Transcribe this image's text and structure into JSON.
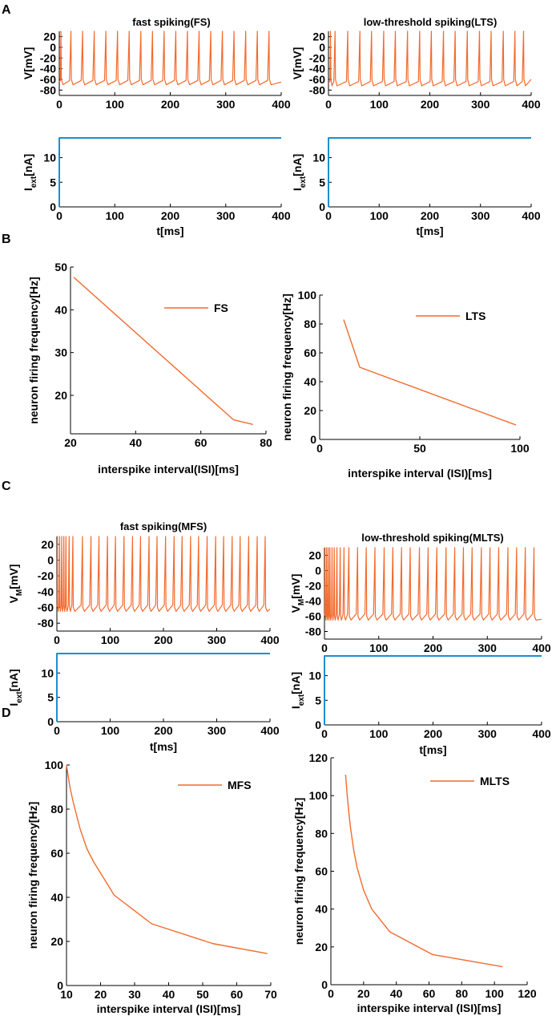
{
  "colors": {
    "voltage": "#f26b2e",
    "current": "#1a8fd0",
    "curve": "#f26b2e",
    "axis": "#000000"
  },
  "panels": [
    {
      "label": "A"
    },
    {
      "label": "B"
    },
    {
      "label": "C"
    },
    {
      "label": "D"
    }
  ],
  "chart_data": [
    {
      "id": "A1",
      "type": "line",
      "panel": "A",
      "title": "fast spiking(FS)",
      "ylabel": "V[mV]",
      "xlabel": "",
      "xlim": [
        0,
        400
      ],
      "ylim": [
        -90,
        30
      ],
      "xticks": [
        "0",
        "100",
        "200",
        "300",
        "400"
      ],
      "yticks": [
        "20",
        "0",
        "-20",
        "-40",
        "-60",
        "-80"
      ],
      "series": [
        {
          "name": "V",
          "kind": "spike_train",
          "spike_times": [
            3,
            21,
            42,
            63,
            84,
            105,
            126,
            147,
            168,
            189,
            210,
            231,
            252,
            273,
            294,
            315,
            336,
            357,
            378
          ],
          "rest": -70,
          "peak": 30,
          "reset": -55,
          "end_value": -65
        }
      ]
    },
    {
      "id": "A2",
      "type": "line",
      "panel": "A",
      "title": "",
      "ylabel": "I",
      "ylabel_sub": "ext",
      "ylabel_suffix": "[nA]",
      "xlabel": "t[ms]",
      "xlim": [
        0,
        400
      ],
      "ylim": [
        0,
        14
      ],
      "xticks": [
        "0",
        "100",
        "200",
        "300",
        "400"
      ],
      "yticks": [
        "0",
        "5",
        "10"
      ],
      "series": [
        {
          "name": "I_ext",
          "kind": "step",
          "x": [
            0,
            0,
            400
          ],
          "y": [
            0,
            14,
            14
          ]
        }
      ]
    },
    {
      "id": "A3",
      "type": "line",
      "panel": "A",
      "title": "low-threshold spiking(LTS)",
      "ylabel": "V[mV]",
      "xlabel": "",
      "xlim": [
        0,
        400
      ],
      "ylim": [
        -90,
        30
      ],
      "xticks": [
        "0",
        "100",
        "200",
        "300",
        "400"
      ],
      "yticks": [
        "20",
        "0",
        "-20",
        "-40",
        "-60",
        "-80"
      ],
      "series": [
        {
          "name": "V",
          "kind": "spike_train",
          "spike_times": [
            4,
            13,
            38,
            62,
            85,
            109,
            132,
            156,
            180,
            203,
            227,
            250,
            274,
            298,
            321,
            345,
            368,
            385
          ],
          "rest": -72,
          "peak": 30,
          "reset": -55,
          "end_value": -60
        }
      ]
    },
    {
      "id": "A4",
      "type": "line",
      "panel": "A",
      "title": "",
      "ylabel": "I",
      "ylabel_sub": "ext",
      "ylabel_suffix": "[nA]",
      "xlabel": "t[ms]",
      "xlim": [
        0,
        400
      ],
      "ylim": [
        0,
        14
      ],
      "xticks": [
        "0",
        "100",
        "200",
        "300",
        "400"
      ],
      "yticks": [
        "0",
        "5",
        "10"
      ],
      "series": [
        {
          "name": "I_ext",
          "kind": "step",
          "x": [
            0,
            0,
            400
          ],
          "y": [
            0,
            14,
            14
          ]
        }
      ]
    },
    {
      "id": "B1",
      "type": "line",
      "panel": "B",
      "title": "",
      "ylabel": "neuron firing frequency[Hz]",
      "xlabel": "interspike interval(ISI)[ms]",
      "xlim": [
        20,
        80
      ],
      "ylim": [
        11,
        50
      ],
      "xticks": [
        "20",
        "40",
        "60",
        "80"
      ],
      "yticks": [
        "20",
        "30",
        "40",
        "50"
      ],
      "legend": "FS",
      "series": [
        {
          "name": "FS",
          "x": [
            21,
            70,
            76
          ],
          "y": [
            47.6,
            14.3,
            13.2
          ]
        }
      ]
    },
    {
      "id": "B2",
      "type": "line",
      "panel": "B",
      "title": "",
      "ylabel": "neuron firing frequency[Hz]",
      "xlabel": "interspike interval (ISI)[ms]",
      "xlim": [
        0,
        100
      ],
      "ylim": [
        0,
        100
      ],
      "xticks": [
        "0",
        "50",
        "100"
      ],
      "yticks": [
        "0",
        "20",
        "40",
        "60",
        "80",
        "100"
      ],
      "legend": "LTS",
      "series": [
        {
          "name": "LTS",
          "x": [
            12,
            20,
            98
          ],
          "y": [
            83,
            50,
            10
          ]
        }
      ]
    },
    {
      "id": "C1",
      "type": "line",
      "panel": "C",
      "title": "fast spiking(MFS)",
      "ylabel": "V",
      "ylabel_sub": "M",
      "ylabel_suffix": "[mV]",
      "xlabel": "",
      "xlim": [
        0,
        400
      ],
      "ylim": [
        -90,
        30
      ],
      "xticks": [
        "0",
        "100",
        "200",
        "300",
        "400"
      ],
      "yticks": [
        "20",
        "0",
        "-20",
        "-40",
        "-60",
        "-80"
      ],
      "series": [
        {
          "name": "V",
          "kind": "spike_train",
          "spike_times": [
            1,
            5,
            9,
            13,
            17,
            23,
            30,
            48,
            64,
            79,
            95,
            110,
            126,
            142,
            157,
            173,
            188,
            204,
            220,
            235,
            251,
            266,
            282,
            298,
            313,
            329,
            344,
            360,
            376,
            391
          ],
          "rest": -65,
          "peak": 30,
          "reset": -55,
          "end_value": -62
        }
      ]
    },
    {
      "id": "C2",
      "type": "line",
      "panel": "C",
      "title": "",
      "ylabel": "I",
      "ylabel_sub": "ext",
      "ylabel_suffix": "[nA]",
      "xlabel": "t[ms]",
      "xlim": [
        0,
        400
      ],
      "ylim": [
        0,
        14
      ],
      "xticks": [
        "0",
        "100",
        "200",
        "300",
        "400"
      ],
      "yticks": [
        "0",
        "5",
        "10"
      ],
      "series": [
        {
          "name": "I_ext",
          "kind": "step",
          "x": [
            0,
            0,
            400
          ],
          "y": [
            0,
            14,
            14
          ]
        }
      ]
    },
    {
      "id": "C3",
      "type": "line",
      "panel": "C",
      "title": "low-threshold spiking(MLTS)",
      "ylabel": "V",
      "ylabel_sub": "M",
      "ylabel_suffix": "[mV]",
      "xlabel": "",
      "xlim": [
        0,
        400
      ],
      "ylim": [
        -90,
        30
      ],
      "xticks": [
        "0",
        "100",
        "200",
        "300",
        "400"
      ],
      "yticks": [
        "20",
        "0",
        "-20",
        "-40",
        "-60",
        "-80"
      ],
      "series": [
        {
          "name": "V",
          "kind": "spike_train",
          "spike_times": [
            1,
            4,
            7,
            10,
            14,
            18,
            23,
            29,
            36,
            45,
            61,
            77,
            93,
            110,
            126,
            142,
            158,
            175,
            191,
            207,
            224,
            240,
            256,
            272,
            289,
            305,
            321,
            338,
            354,
            370,
            386
          ],
          "rest": -65,
          "peak": 30,
          "reset": -55,
          "end_value": -64
        }
      ]
    },
    {
      "id": "C4",
      "type": "line",
      "panel": "C",
      "title": "",
      "ylabel": "I",
      "ylabel_sub": "ext",
      "ylabel_suffix": "[nA]",
      "xlabel": "t[ms]",
      "xlim": [
        0,
        400
      ],
      "ylim": [
        0,
        14
      ],
      "xticks": [
        "0",
        "100",
        "200",
        "300",
        "400"
      ],
      "yticks": [
        "0",
        "5",
        "10"
      ],
      "series": [
        {
          "name": "I_ext",
          "kind": "step",
          "x": [
            0,
            0,
            400
          ],
          "y": [
            0,
            14,
            14
          ]
        }
      ]
    },
    {
      "id": "D1",
      "type": "line",
      "panel": "D",
      "title": "",
      "ylabel": "neuron firing frequency[Hz]",
      "xlabel": "interspike interval (ISI)[ms]",
      "xlim": [
        10,
        70
      ],
      "ylim": [
        0,
        100
      ],
      "xticks": [
        "10",
        "20",
        "30",
        "40",
        "50",
        "60",
        "70"
      ],
      "yticks": [
        "0",
        "20",
        "40",
        "60",
        "80",
        "100"
      ],
      "legend": "MFS",
      "series": [
        {
          "name": "MFS",
          "x": [
            10,
            11,
            12,
            14,
            16,
            18,
            24,
            35,
            53,
            69
          ],
          "y": [
            100,
            90,
            83,
            71,
            62,
            56,
            41,
            28,
            19,
            14.5
          ]
        }
      ]
    },
    {
      "id": "D2",
      "type": "line",
      "panel": "D",
      "title": "",
      "ylabel": "neuron firing frequency[Hz]",
      "xlabel": "interspike interval (ISI)[ms]",
      "xlim": [
        0,
        120
      ],
      "ylim": [
        0,
        120
      ],
      "xticks": [
        "0",
        "20",
        "40",
        "60",
        "80",
        "100",
        "120"
      ],
      "yticks": [
        "0",
        "20",
        "40",
        "60",
        "80",
        "100",
        "120"
      ],
      "legend": "MLTS",
      "series": [
        {
          "name": "MLTS",
          "x": [
            9,
            10,
            11,
            12,
            14,
            16,
            20,
            25,
            36,
            62,
            105
          ],
          "y": [
            111,
            100,
            91,
            83,
            71,
            62,
            50,
            40,
            28,
            16,
            9.5
          ]
        }
      ]
    }
  ]
}
